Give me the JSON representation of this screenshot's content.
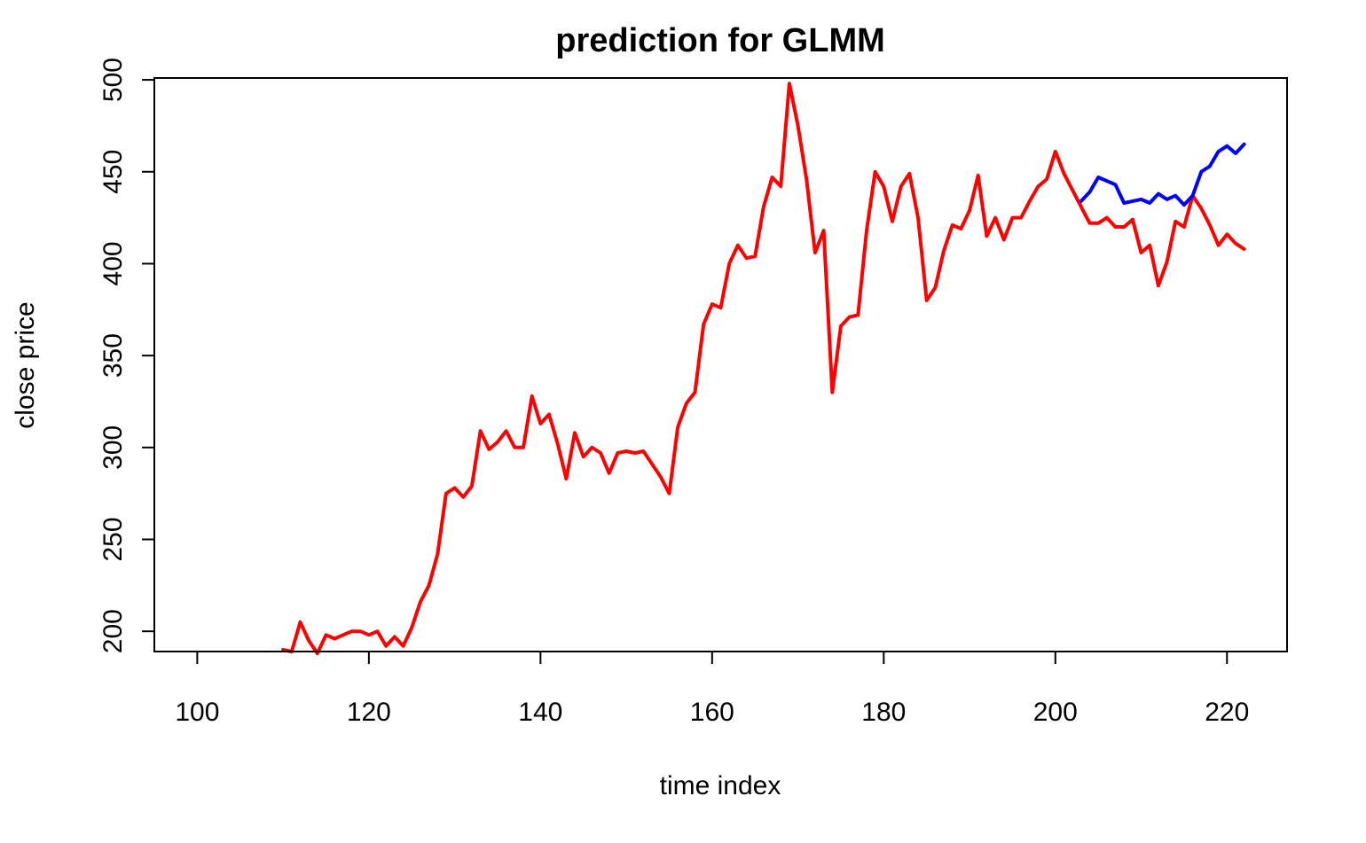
{
  "chart_data": {
    "type": "line",
    "title": "prediction for GLMM",
    "xlabel": "time index",
    "ylabel": "close price",
    "xlim": [
      95,
      227
    ],
    "ylim": [
      189,
      501
    ],
    "x_ticks": [
      100,
      120,
      140,
      160,
      180,
      200,
      220
    ],
    "y_ticks": [
      200,
      250,
      300,
      350,
      400,
      450,
      500
    ],
    "grid": false,
    "legend": "none",
    "series": [
      {
        "color": "#ff0000",
        "x": [
          110,
          111,
          112,
          113,
          114,
          115,
          116,
          117,
          118,
          119,
          120,
          121,
          122,
          123,
          124,
          125,
          126,
          127,
          128,
          129,
          130,
          131,
          132,
          133,
          134,
          135,
          136,
          137,
          138,
          139,
          140,
          141,
          142,
          143,
          144,
          145,
          146,
          147,
          148,
          149,
          150,
          151,
          152,
          153,
          154,
          155,
          156,
          157,
          158,
          159,
          160,
          161,
          162,
          163,
          164,
          165,
          166,
          167,
          168,
          169,
          170,
          171,
          172,
          173,
          174,
          175,
          176,
          177,
          178,
          179,
          180,
          181,
          182,
          183,
          184,
          185,
          186,
          187,
          188,
          189,
          190,
          191,
          192,
          193,
          194,
          195,
          196,
          197,
          198,
          199,
          200,
          201,
          202,
          203,
          204,
          205,
          206,
          207,
          208,
          209,
          210,
          211,
          212,
          213,
          214,
          215,
          216,
          217,
          218,
          219,
          220,
          221,
          222
        ],
        "y": [
          190,
          189,
          205,
          195,
          188,
          198,
          196,
          198,
          200,
          200,
          198,
          200,
          192,
          197,
          192,
          202,
          216,
          225,
          242,
          275,
          278,
          273,
          279,
          309,
          299,
          303,
          309,
          300,
          300,
          328,
          313,
          318,
          302,
          283,
          308,
          295,
          300,
          297,
          286,
          297,
          298,
          297,
          298,
          291,
          284,
          275,
          311,
          324,
          330,
          367,
          378,
          376,
          400,
          410,
          403,
          404,
          431,
          447,
          442,
          498,
          475,
          446,
          406,
          418,
          330,
          366,
          371,
          372,
          418,
          450,
          442,
          423,
          442,
          449,
          425,
          380,
          387,
          407,
          421,
          419,
          429,
          448,
          415,
          425,
          413,
          425,
          425,
          434,
          442,
          446,
          461,
          449,
          440,
          431,
          422,
          422,
          425,
          420,
          420,
          424,
          406,
          410,
          388,
          401,
          423,
          420,
          437,
          430,
          421,
          410,
          416,
          411,
          408
        ]
      },
      {
        "color": "#0000ff",
        "x": [
          203,
          204,
          205,
          206,
          207,
          208,
          209,
          210,
          211,
          212,
          213,
          214,
          215,
          216,
          217,
          218,
          219,
          220,
          221,
          222
        ],
        "y": [
          434,
          439,
          447,
          445,
          443,
          433,
          434,
          435,
          433,
          438,
          435,
          437,
          432,
          437,
          450,
          453,
          461,
          464,
          460,
          465
        ]
      }
    ]
  }
}
